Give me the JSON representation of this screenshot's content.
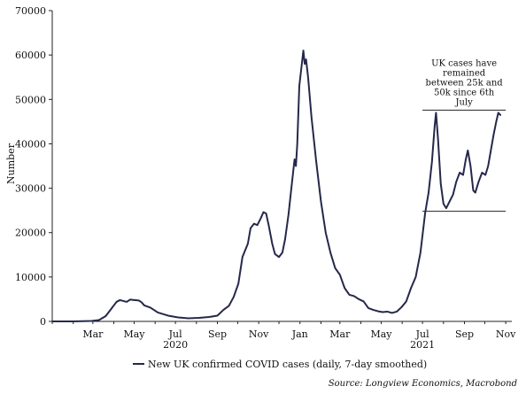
{
  "chart_data": {
    "type": "line",
    "ylabel": "Number",
    "ylim": [
      0,
      70000
    ],
    "y_ticks": [
      "0",
      "10000",
      "20000",
      "30000",
      "40000",
      "50000",
      "60000",
      "70000"
    ],
    "x_range": [
      "2020-01-01",
      "2021-11-10"
    ],
    "x_ticks": [
      {
        "date": "2020-03-01",
        "label": "Mar"
      },
      {
        "date": "2020-05-01",
        "label": "May"
      },
      {
        "date": "2020-07-01",
        "label": "Jul"
      },
      {
        "date": "2020-09-01",
        "label": "Sep"
      },
      {
        "date": "2020-11-01",
        "label": "Nov"
      },
      {
        "date": "2021-01-01",
        "label": "Jan"
      },
      {
        "date": "2021-03-01",
        "label": "Mar"
      },
      {
        "date": "2021-05-01",
        "label": "May"
      },
      {
        "date": "2021-07-01",
        "label": "Jul"
      },
      {
        "date": "2021-09-01",
        "label": "Sep"
      },
      {
        "date": "2021-11-01",
        "label": "Nov"
      }
    ],
    "year_labels": [
      {
        "date": "2020-07-01",
        "label": "2020"
      },
      {
        "date": "2021-07-01",
        "label": "2021"
      }
    ],
    "series": [
      {
        "name": "New UK confirmed COVID cases (daily, 7-day smoothed)",
        "color": "#25284a",
        "points": [
          [
            "2020-01-01",
            0
          ],
          [
            "2020-02-01",
            0
          ],
          [
            "2020-02-28",
            100
          ],
          [
            "2020-03-10",
            300
          ],
          [
            "2020-03-20",
            1200
          ],
          [
            "2020-03-28",
            2800
          ],
          [
            "2020-04-05",
            4400
          ],
          [
            "2020-04-10",
            4800
          ],
          [
            "2020-04-15",
            4600
          ],
          [
            "2020-04-20",
            4400
          ],
          [
            "2020-04-25",
            4900
          ],
          [
            "2020-05-01",
            4800
          ],
          [
            "2020-05-08",
            4700
          ],
          [
            "2020-05-12",
            4300
          ],
          [
            "2020-05-16",
            3600
          ],
          [
            "2020-05-25",
            3100
          ],
          [
            "2020-06-05",
            2000
          ],
          [
            "2020-06-20",
            1300
          ],
          [
            "2020-07-05",
            900
          ],
          [
            "2020-07-20",
            700
          ],
          [
            "2020-08-05",
            800
          ],
          [
            "2020-08-20",
            1000
          ],
          [
            "2020-09-01",
            1300
          ],
          [
            "2020-09-10",
            2600
          ],
          [
            "2020-09-18",
            3500
          ],
          [
            "2020-09-25",
            5500
          ],
          [
            "2020-10-02",
            8500
          ],
          [
            "2020-10-08",
            14500
          ],
          [
            "2020-10-12",
            16000
          ],
          [
            "2020-10-16",
            17500
          ],
          [
            "2020-10-20",
            21000
          ],
          [
            "2020-10-25",
            22000
          ],
          [
            "2020-10-30",
            21700
          ],
          [
            "2020-11-04",
            23200
          ],
          [
            "2020-11-08",
            24600
          ],
          [
            "2020-11-12",
            24300
          ],
          [
            "2020-11-16",
            21500
          ],
          [
            "2020-11-21",
            17500
          ],
          [
            "2020-11-25",
            15200
          ],
          [
            "2020-12-01",
            14500
          ],
          [
            "2020-12-06",
            15500
          ],
          [
            "2020-12-10",
            18500
          ],
          [
            "2020-12-15",
            24000
          ],
          [
            "2020-12-20",
            31000
          ],
          [
            "2020-12-24",
            36500
          ],
          [
            "2020-12-26",
            35000
          ],
          [
            "2020-12-28",
            40000
          ],
          [
            "2020-12-31",
            53000
          ],
          [
            "2021-01-03",
            57000
          ],
          [
            "2021-01-06",
            61000
          ],
          [
            "2021-01-08",
            58000
          ],
          [
            "2021-01-10",
            59000
          ],
          [
            "2021-01-13",
            55000
          ],
          [
            "2021-01-18",
            46000
          ],
          [
            "2021-01-25",
            36000
          ],
          [
            "2021-02-01",
            27000
          ],
          [
            "2021-02-08",
            20000
          ],
          [
            "2021-02-15",
            15500
          ],
          [
            "2021-02-22",
            12000
          ],
          [
            "2021-03-01",
            10500
          ],
          [
            "2021-03-08",
            7500
          ],
          [
            "2021-03-15",
            6000
          ],
          [
            "2021-03-22",
            5700
          ],
          [
            "2021-03-29",
            5000
          ],
          [
            "2021-04-05",
            4500
          ],
          [
            "2021-04-12",
            3000
          ],
          [
            "2021-04-19",
            2600
          ],
          [
            "2021-04-26",
            2300
          ],
          [
            "2021-05-03",
            2100
          ],
          [
            "2021-05-10",
            2200
          ],
          [
            "2021-05-17",
            1900
          ],
          [
            "2021-05-24",
            2200
          ],
          [
            "2021-05-31",
            3200
          ],
          [
            "2021-06-07",
            4500
          ],
          [
            "2021-06-14",
            7500
          ],
          [
            "2021-06-21",
            10000
          ],
          [
            "2021-06-28",
            15500
          ],
          [
            "2021-07-05",
            24500
          ],
          [
            "2021-07-10",
            29000
          ],
          [
            "2021-07-15",
            36000
          ],
          [
            "2021-07-19",
            44000
          ],
          [
            "2021-07-21",
            47000
          ],
          [
            "2021-07-24",
            41000
          ],
          [
            "2021-07-28",
            31000
          ],
          [
            "2021-08-01",
            26500
          ],
          [
            "2021-08-05",
            25500
          ],
          [
            "2021-08-10",
            27000
          ],
          [
            "2021-08-15",
            28500
          ],
          [
            "2021-08-20",
            31500
          ],
          [
            "2021-08-25",
            33500
          ],
          [
            "2021-08-30",
            33000
          ],
          [
            "2021-09-03",
            36500
          ],
          [
            "2021-09-06",
            38500
          ],
          [
            "2021-09-10",
            35000
          ],
          [
            "2021-09-14",
            29500
          ],
          [
            "2021-09-17",
            29000
          ],
          [
            "2021-09-22",
            31500
          ],
          [
            "2021-09-27",
            33500
          ],
          [
            "2021-10-02",
            33000
          ],
          [
            "2021-10-06",
            35000
          ],
          [
            "2021-10-10",
            38500
          ],
          [
            "2021-10-14",
            42000
          ],
          [
            "2021-10-18",
            45000
          ],
          [
            "2021-10-21",
            47000
          ],
          [
            "2021-10-24",
            46500
          ]
        ]
      }
    ],
    "annotation": {
      "lines": [
        "UK cases have",
        "remained",
        "between 25k and",
        "50k since 6th",
        "July"
      ],
      "band_upper": 47600,
      "band_lower": 24800,
      "band_x_range": [
        "2021-07-01",
        "2021-11-01"
      ]
    },
    "legend_position": "bottom-center",
    "source": "Source: Longview Economics, Macrobond"
  }
}
